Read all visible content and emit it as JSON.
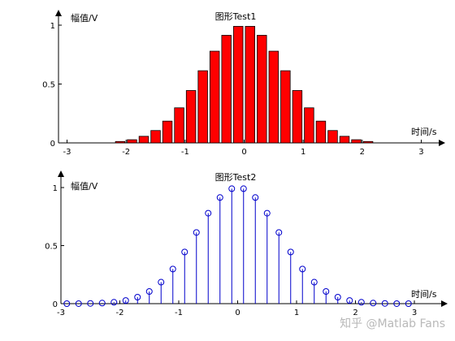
{
  "chart_data": [
    {
      "type": "bar",
      "title": "图形Test1",
      "ylabel": "幅值/V",
      "xlabel": "时间/s",
      "xlim": [
        -3.2,
        3.2
      ],
      "ylim": [
        0,
        1
      ],
      "xticks": [
        "-3",
        "-2",
        "-1",
        "0",
        "1",
        "2",
        "3"
      ],
      "yticks": [
        "0",
        "0.5",
        "1"
      ],
      "bar_color": "#ff0000",
      "x": [
        -2.1,
        -1.9,
        -1.7,
        -1.5,
        -1.3,
        -1.1,
        -0.9,
        -0.7,
        -0.5,
        -0.3,
        -0.1,
        0.1,
        0.3,
        0.5,
        0.7,
        0.9,
        1.1,
        1.3,
        1.5,
        1.7,
        1.9,
        2.1
      ],
      "values": [
        0.012,
        0.027,
        0.056,
        0.105,
        0.185,
        0.298,
        0.445,
        0.613,
        0.779,
        0.914,
        0.99,
        0.99,
        0.914,
        0.779,
        0.613,
        0.445,
        0.298,
        0.185,
        0.105,
        0.056,
        0.027,
        0.012
      ]
    },
    {
      "type": "stem",
      "title": "图形Test2",
      "ylabel": "幅值/V",
      "xlabel": "时间/s",
      "xlim": [
        -3,
        3
      ],
      "ylim": [
        0,
        1
      ],
      "xticks": [
        "-3",
        "-2",
        "-1",
        "0",
        "1",
        "2",
        "3"
      ],
      "yticks": [
        "0",
        "0.5",
        "1"
      ],
      "stem_color": "#0000cc",
      "x": [
        -2.9,
        -2.7,
        -2.5,
        -2.3,
        -2.1,
        -1.9,
        -1.7,
        -1.5,
        -1.3,
        -1.1,
        -0.9,
        -0.7,
        -0.5,
        -0.3,
        -0.1,
        0.1,
        0.3,
        0.5,
        0.7,
        0.9,
        1.1,
        1.3,
        1.5,
        1.7,
        1.9,
        2.1,
        2.3,
        2.5,
        2.7,
        2.9
      ],
      "values": [
        0.0001,
        0.0003,
        0.002,
        0.005,
        0.012,
        0.027,
        0.056,
        0.105,
        0.185,
        0.298,
        0.445,
        0.613,
        0.779,
        0.914,
        0.99,
        0.99,
        0.914,
        0.779,
        0.613,
        0.445,
        0.298,
        0.185,
        0.105,
        0.056,
        0.027,
        0.012,
        0.005,
        0.002,
        0.0003,
        0.0001
      ]
    }
  ],
  "watermark": "知乎 @Matlab Fans"
}
